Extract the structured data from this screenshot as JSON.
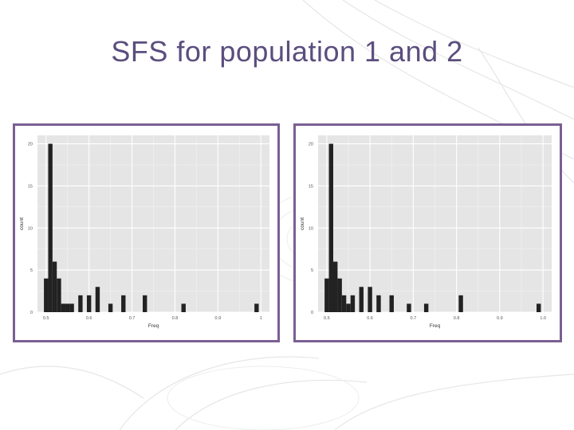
{
  "slide": {
    "title": "SFS for population 1 and 2"
  },
  "colors": {
    "frame": "#7a5f93",
    "title": "#5b4e7e",
    "panel": "#e5e5e5",
    "grid": "#ffffff",
    "bar": "#222222"
  },
  "chart_data": [
    {
      "type": "bar",
      "xlabel": "Freq",
      "ylabel": "count",
      "xlim": [
        0.48,
        1.02
      ],
      "ylim": [
        0,
        21
      ],
      "x_ticks": [
        0.5,
        0.6,
        0.7,
        0.8,
        0.9,
        1.0
      ],
      "x_tick_labels": [
        "0.5",
        "0.6",
        "0.7",
        "0.8",
        "0.9",
        "1"
      ],
      "y_ticks": [
        0,
        5,
        10,
        15,
        20
      ],
      "y_tick_labels": [
        "0",
        "5",
        "10",
        "15",
        "20"
      ],
      "grid": true,
      "legend": "none",
      "bin_width": 0.01,
      "x": [
        0.5,
        0.51,
        0.52,
        0.53,
        0.54,
        0.55,
        0.56,
        0.58,
        0.6,
        0.62,
        0.65,
        0.68,
        0.73,
        0.82,
        0.99
      ],
      "values": [
        4,
        20,
        6,
        4,
        1,
        1,
        1,
        2,
        2,
        3,
        1,
        2,
        2,
        1,
        1
      ]
    },
    {
      "type": "bar",
      "xlabel": "Freq",
      "ylabel": "count",
      "xlim": [
        0.48,
        1.02
      ],
      "ylim": [
        0,
        21
      ],
      "x_ticks": [
        0.5,
        0.6,
        0.7,
        0.8,
        0.9,
        1.0
      ],
      "x_tick_labels": [
        "0.5",
        "0.6",
        "0.7",
        "0.8",
        "0.9",
        "1.0"
      ],
      "y_ticks": [
        0,
        5,
        10,
        15,
        20
      ],
      "y_tick_labels": [
        "0",
        "5",
        "10",
        "15",
        "20"
      ],
      "grid": true,
      "legend": "none",
      "bin_width": 0.01,
      "x": [
        0.5,
        0.51,
        0.52,
        0.53,
        0.54,
        0.55,
        0.56,
        0.58,
        0.6,
        0.62,
        0.65,
        0.69,
        0.73,
        0.81,
        0.99
      ],
      "values": [
        4,
        20,
        6,
        4,
        2,
        1,
        2,
        3,
        3,
        2,
        2,
        1,
        1,
        2,
        1
      ]
    }
  ]
}
